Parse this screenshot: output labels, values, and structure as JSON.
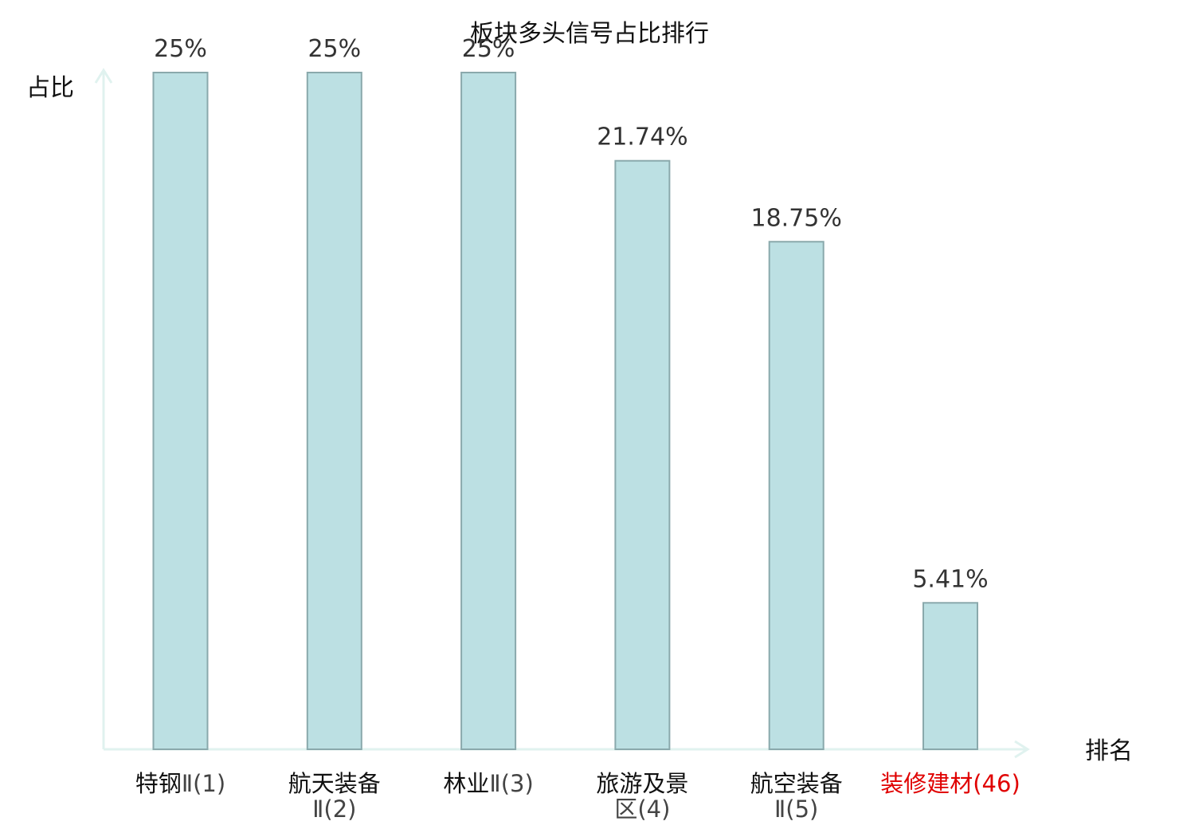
{
  "chart_data": {
    "type": "bar",
    "title": "板块多头信号占比排行",
    "ylabel": "占比",
    "xlabel": "排名",
    "ylim": [
      0,
      25
    ],
    "categories": [
      {
        "name": "特钢",
        "suffix": "Ⅱ(1)",
        "highlight": false
      },
      {
        "name": "航天装备",
        "suffix": "Ⅱ(2)",
        "highlight": false
      },
      {
        "name": "林业",
        "suffix": "Ⅱ(3)",
        "highlight": false
      },
      {
        "name": "旅游及景",
        "suffix": "区(4)",
        "highlight": false
      },
      {
        "name": "航空装备",
        "suffix": "Ⅱ(5)",
        "highlight": false
      },
      {
        "name": "装修建材",
        "suffix": "(46)",
        "highlight": true
      }
    ],
    "values": [
      25,
      25,
      25,
      21.74,
      18.75,
      5.41
    ],
    "value_labels": [
      "25%",
      "25%",
      "25%",
      "21.74%",
      "18.75%",
      "5.41%"
    ],
    "grid": false,
    "colors": {
      "bar_fill": "#bce0e3",
      "bar_stroke": "#8aa9ac",
      "axis": "#e0f2ef",
      "highlight_text": "#e00000",
      "tick_name": "#111111",
      "tick_suffix": "#444444"
    }
  }
}
